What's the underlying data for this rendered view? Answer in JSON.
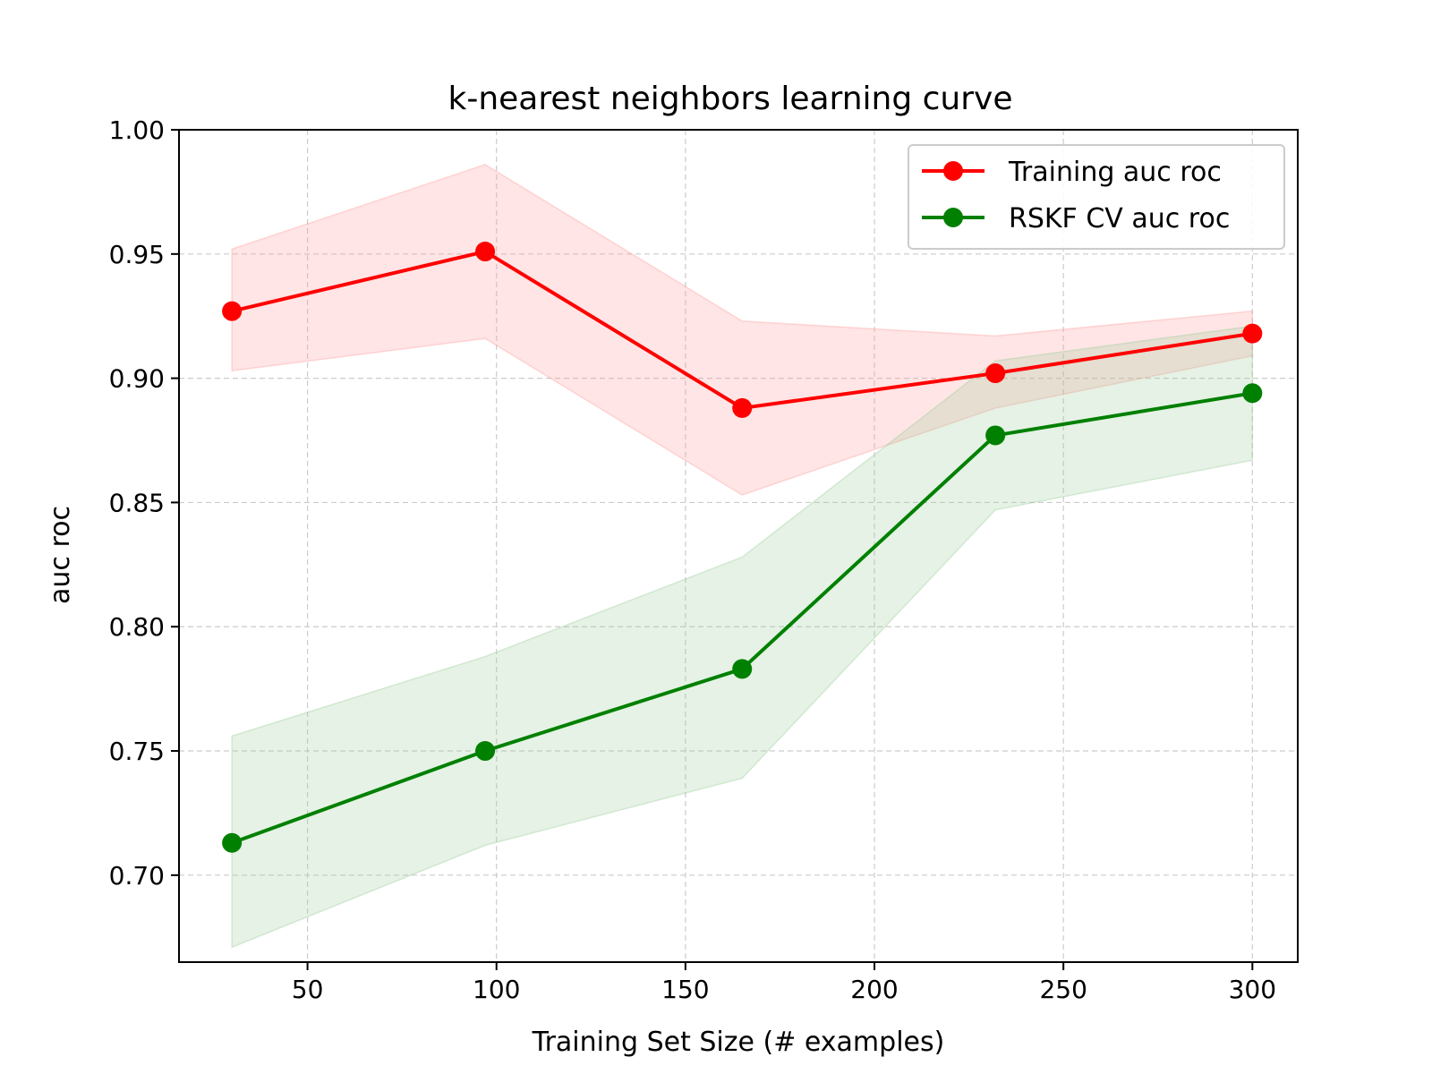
{
  "chart_data": {
    "type": "line",
    "title": "k-nearest neighbors learning curve",
    "xlabel": "Training Set Size (# examples)",
    "ylabel": "auc roc",
    "xlim": [
      16,
      312
    ],
    "ylim": [
      0.665,
      1.0
    ],
    "xticks": [
      50,
      100,
      150,
      200,
      250,
      300
    ],
    "yticks": [
      0.7,
      0.75,
      0.8,
      0.85,
      0.9,
      0.95,
      1.0
    ],
    "grid": true,
    "legend_position": "top-right",
    "x": [
      30,
      97,
      165,
      232,
      300
    ],
    "series": [
      {
        "name": "Training auc roc",
        "color": "#ff0000",
        "fill_color": "#ff9999",
        "values": [
          0.927,
          0.951,
          0.888,
          0.902,
          0.918
        ],
        "upper": [
          0.952,
          0.986,
          0.923,
          0.917,
          0.927
        ],
        "lower": [
          0.903,
          0.916,
          0.853,
          0.888,
          0.909
        ]
      },
      {
        "name": "RSKF CV auc roc",
        "color": "#008000",
        "fill_color": "#99cc99",
        "values": [
          0.713,
          0.75,
          0.783,
          0.877,
          0.894
        ],
        "upper": [
          0.756,
          0.788,
          0.828,
          0.907,
          0.921
        ],
        "lower": [
          0.671,
          0.712,
          0.739,
          0.847,
          0.867
        ]
      }
    ]
  }
}
